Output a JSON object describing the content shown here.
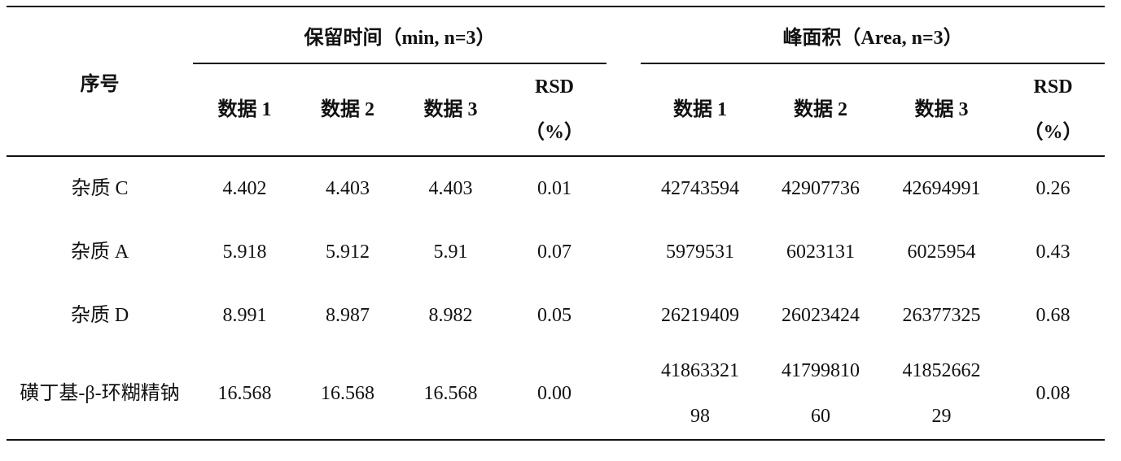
{
  "table": {
    "header": {
      "index": "序号",
      "group1": "保留时间（min, n=3）",
      "group2": "峰面积（Area, n=3）",
      "sub": [
        "数据 1",
        "数据 2",
        "数据 3",
        "RSD\n（%）",
        "数据 1",
        "数据 2",
        "数据 3",
        "RSD\n（%）"
      ]
    },
    "rows": [
      [
        "杂质 C",
        "4.402",
        "4.403",
        "4.403",
        "0.01",
        "42743594",
        "42907736",
        "42694991",
        "0.26"
      ],
      [
        "杂质 A",
        "5.918",
        "5.912",
        "5.91",
        "0.07",
        "5979531",
        "6023131",
        "6025954",
        "0.43"
      ],
      [
        "杂质 D",
        "8.991",
        "8.987",
        "8.982",
        "0.05",
        "26219409",
        "26023424",
        "26377325",
        "0.68"
      ],
      [
        "磺丁基-β-环糊精钠",
        "16.568",
        "16.568",
        "16.568",
        "0.00",
        "4186332198",
        "4179981060",
        "4185266229",
        "0.08"
      ]
    ]
  }
}
